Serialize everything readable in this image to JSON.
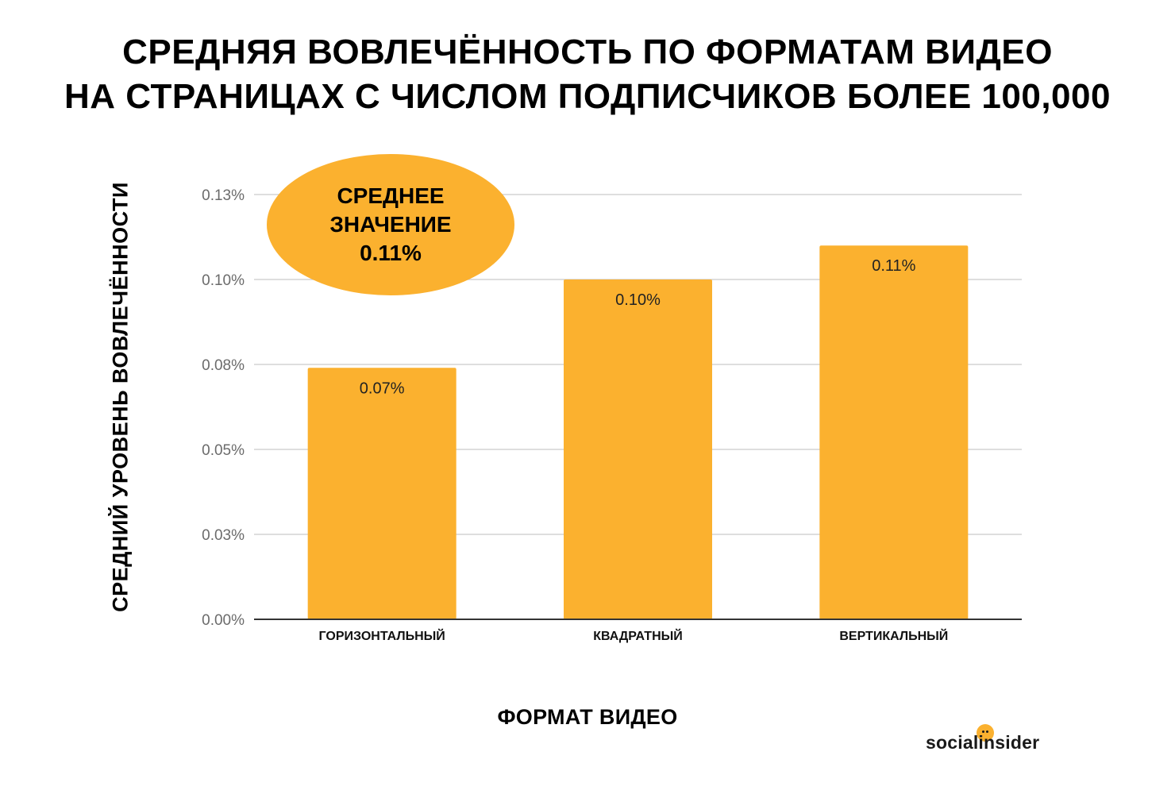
{
  "title": {
    "line1": "СРЕДНЯЯ ВОВЛЕЧЁННОСТЬ ПО ФОРМАТАМ ВИДЕО",
    "line2": "НА СТРАНИЦАХ С ЧИСЛОМ ПОДПИСЧИКОВ БОЛЕЕ 100,000"
  },
  "average_badge": {
    "line1": "СРЕДНЕЕ",
    "line2": "ЗНАЧЕНИЕ",
    "value": "0.11%"
  },
  "brand": {
    "logo_text": "socialinsider",
    "accent_color": "#FBB12F"
  },
  "chart_data": {
    "type": "bar",
    "title": "СРЕДНЯЯ ВОВЛЕЧЁННОСТЬ ПО ФОРМАТАМ ВИДЕО НА СТРАНИЦАХ С ЧИСЛОМ ПОДПИСЧИКОВ БОЛЕЕ 100,000",
    "xlabel": "ФОРМАТ ВИДЕО",
    "ylabel": "СРЕДНИЙ УРОВЕНЬ ВОВЛЕЧЁННОСТИ",
    "categories": [
      "ГОРИЗОНТАЛЬНЫЙ",
      "КВАДРАТНЫЙ",
      "ВЕРТИКАЛЬНЫЙ"
    ],
    "values": [
      0.074,
      0.1,
      0.11
    ],
    "data_labels": [
      "0.07%",
      "0.10%",
      "0.11%"
    ],
    "ylim": [
      0,
      0.125
    ],
    "yticks": [
      0,
      0.025,
      0.05,
      0.075,
      0.1,
      0.125
    ],
    "ytick_labels": [
      "0.00%",
      "0.03%",
      "0.05%",
      "0.08%",
      "0.10%",
      "0.13%"
    ],
    "grid": true,
    "bar_color": "#FBB12F",
    "grid_color": "#d3d3d3",
    "axis_color": "#333333"
  }
}
